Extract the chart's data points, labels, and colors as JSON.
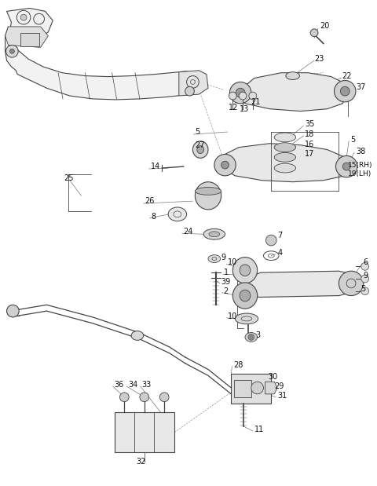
{
  "bg_color": "#ffffff",
  "line_color": "#444444",
  "text_color": "#111111",
  "fig_width": 4.8,
  "fig_height": 6.19,
  "dpi": 100
}
